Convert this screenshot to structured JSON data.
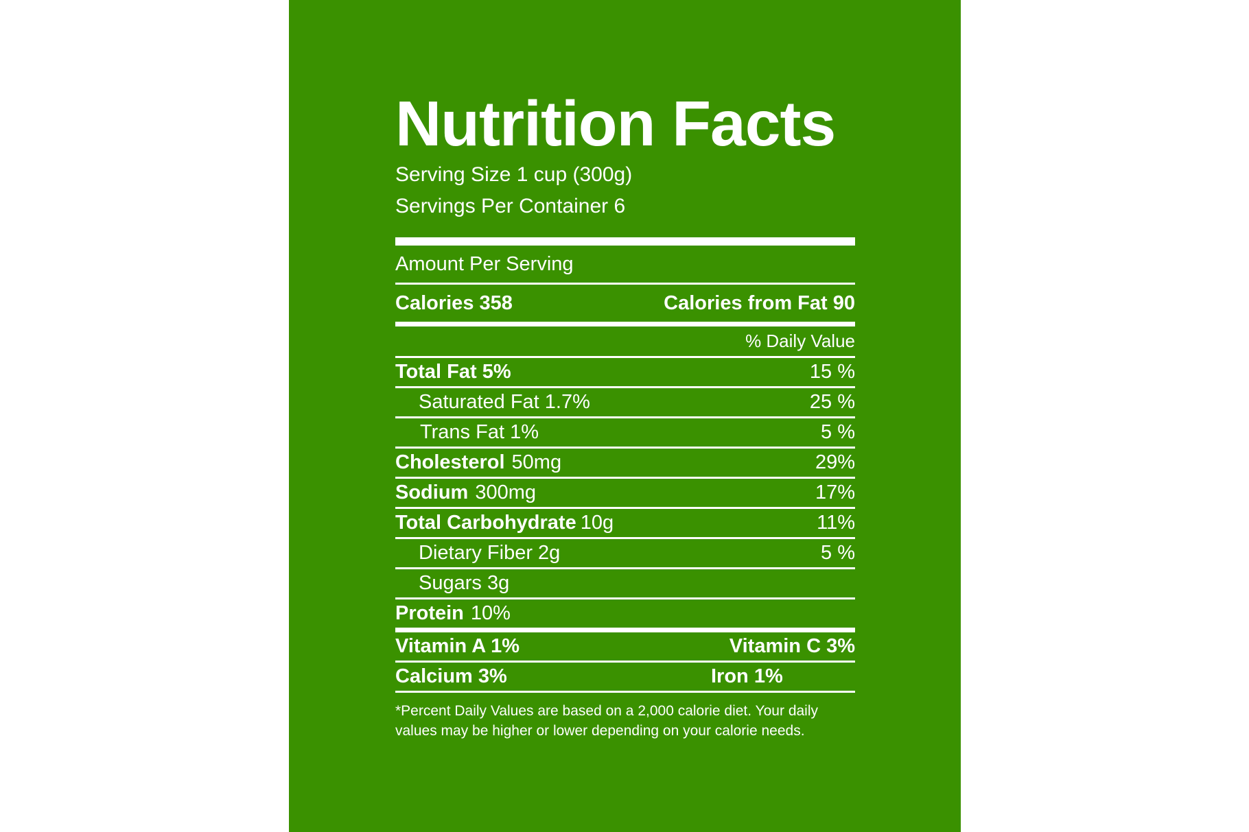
{
  "label": {
    "title": "Nutrition Facts",
    "serving_size": "Serving Size 1 cup (300g)",
    "servings_per_container": "Servings Per Container 6",
    "amount_per_serving": "Amount Per Serving",
    "calories": "Calories 358",
    "calories_from_fat": "Calories from Fat 90",
    "daily_value_header": "% Daily Value",
    "nutrients": [
      {
        "name": "Total Fat 5%",
        "amount": "",
        "dv": "15 %"
      },
      {
        "name": "Saturated Fat 1.7%",
        "amount": "",
        "dv": "25 %"
      },
      {
        "name": "Trans Fat 1%",
        "amount": "",
        "dv": "5 %"
      },
      {
        "name": "Cholesterol",
        "amount": "50mg",
        "dv": "29%"
      },
      {
        "name": "Sodium",
        "amount": "300mg",
        "dv": "17%"
      },
      {
        "name": "Total Carbohydrate",
        "amount": "10g",
        "dv": "11%"
      },
      {
        "name": "Dietary Fiber 2g",
        "amount": "",
        "dv": "5 %"
      },
      {
        "name": "Sugars 3g",
        "amount": "",
        "dv": ""
      },
      {
        "name": "Protein",
        "amount": "10%",
        "dv": ""
      }
    ],
    "vitamins": {
      "vitamin_a": "Vitamin A 1%",
      "vitamin_c": "Vitamin C 3%",
      "calcium": "Calcium 3%",
      "iron": "Iron 1%"
    },
    "footnote": "*Percent Daily Values are based on a 2,000 calorie diet.  Your daily values may be higher or lower depending on your calorie needs."
  },
  "colors": {
    "background": "#3a9100",
    "text": "#ffffff"
  }
}
